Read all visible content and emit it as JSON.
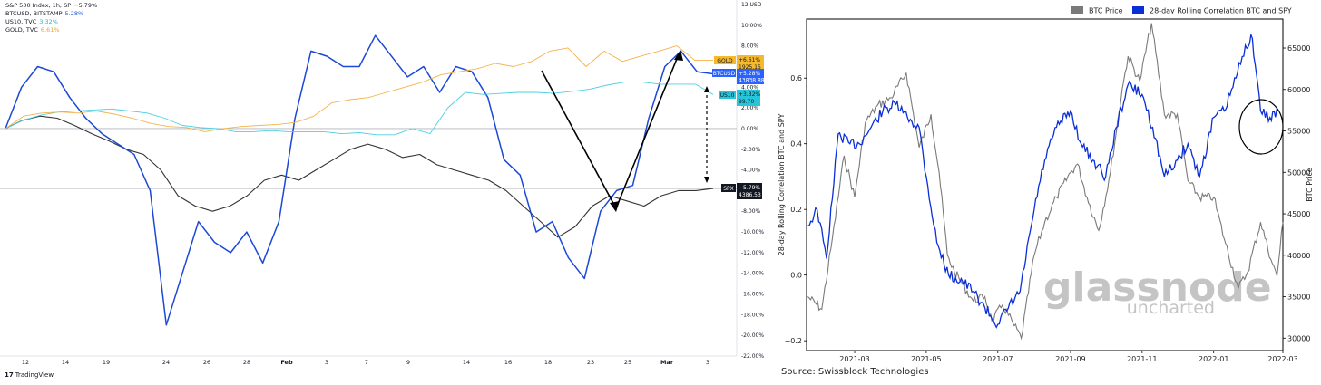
{
  "left": {
    "legend": [
      {
        "name": "S&P 500 Index, 1h, SP",
        "value": "−5.79%",
        "color": "#131722"
      },
      {
        "name": "BTCUSD, BITSTAMP",
        "value": "5.28%",
        "color": "#1e53e5"
      },
      {
        "name": "US10, TVC",
        "value": "3.32%",
        "color": "#22b5c9"
      },
      {
        "name": "GOLD, TVC",
        "value": "6.61%",
        "color": "#f0a420"
      }
    ],
    "tradingview": "TradingView",
    "badges": {
      "gold": {
        "ticker": "GOLD",
        "pct": "+6.61%",
        "price": "1925.15",
        "color": "#f5b92e"
      },
      "btc": {
        "ticker": "BTCUSD",
        "pct": "+5.28%",
        "price": "43838.88",
        "color": "#2962ff"
      },
      "us10": {
        "ticker": "US10",
        "pct": "+3.32%",
        "price": "99.70",
        "color": "#26c6da"
      },
      "spx": {
        "ticker": "SPX",
        "pct": "−5.79%",
        "price": "4386.53",
        "color": "#131722"
      }
    }
  },
  "chart_data": [
    {
      "type": "line",
      "y_unit": "%",
      "ylim": [
        -22,
        12
      ],
      "y_ticks": [
        "12 USD",
        "10.00%",
        "8.00%",
        "6.00%",
        "4.00%",
        "2.00%",
        "0.00%",
        "-2.00%",
        "-4.00%",
        "-6.00%",
        "-8.00%",
        "-10.00%",
        "-12.00%",
        "-14.00%",
        "-16.00%",
        "-18.00%",
        "-20.00%",
        "-22.00%"
      ],
      "x_ticks": [
        "12",
        "14",
        "19",
        "24",
        "26",
        "28",
        "Feb",
        "3",
        "7",
        "9",
        "14",
        "16",
        "18",
        "23",
        "25",
        "Mar",
        "3"
      ],
      "grid": false,
      "series": [
        {
          "name": "S&P 500 Index, 1h, SP",
          "color": "#333333",
          "values": [
            0,
            0.8,
            1.2,
            1.0,
            0.3,
            -0.5,
            -1.2,
            -2.0,
            -2.5,
            -4.0,
            -6.5,
            -7.5,
            -8.0,
            -7.5,
            -6.5,
            -5.0,
            -4.5,
            -5.0,
            -4.0,
            -3.0,
            -2.0,
            -1.5,
            -2.0,
            -2.8,
            -2.5,
            -3.5,
            -4.0,
            -4.5,
            -5.0,
            -6.0,
            -7.5,
            -9.0,
            -10.5,
            -9.5,
            -7.5,
            -6.5,
            -7.0,
            -7.5,
            -6.5,
            -6.0,
            -6.0,
            -5.8
          ]
        },
        {
          "name": "BTCUSD, BITSTAMP",
          "color": "#1c48d6",
          "values": [
            0,
            4.0,
            6.0,
            5.5,
            3.0,
            1.0,
            -0.5,
            -1.5,
            -2.5,
            -6.0,
            -19.0,
            -14.0,
            -9.0,
            -11.0,
            -12.0,
            -10.0,
            -13.0,
            -9.0,
            1.0,
            7.5,
            7.0,
            6.0,
            6.0,
            9.0,
            7.0,
            5.0,
            6.0,
            3.5,
            6.0,
            5.5,
            3.0,
            -3.0,
            -4.5,
            -10.0,
            -9.0,
            -12.5,
            -14.5,
            -8.0,
            -6.0,
            -5.5,
            1.0,
            6.0,
            7.5,
            5.5,
            5.3
          ]
        },
        {
          "name": "US10, TVC",
          "color": "#4dd0e1",
          "values": [
            0,
            0.8,
            1.3,
            1.6,
            1.7,
            1.8,
            1.9,
            1.7,
            1.5,
            1.0,
            0.3,
            0.1,
            0.0,
            -0.3,
            -0.3,
            -0.2,
            -0.3,
            -0.3,
            -0.3,
            -0.5,
            -0.4,
            -0.6,
            -0.6,
            0.0,
            -0.5,
            2.0,
            3.5,
            3.3,
            3.4,
            3.5,
            3.5,
            3.4,
            3.6,
            3.8,
            4.2,
            4.5,
            4.5,
            4.3,
            4.3,
            4.3,
            3.3
          ]
        },
        {
          "name": "GOLD, TVC",
          "color": "#f5b34f",
          "values": [
            0,
            1.2,
            1.5,
            1.6,
            1.5,
            1.7,
            1.4,
            1.0,
            0.5,
            0.2,
            0.1,
            -0.3,
            0.0,
            0.2,
            0.3,
            0.4,
            0.6,
            1.2,
            2.5,
            2.8,
            3.0,
            3.5,
            4.0,
            4.5,
            5.2,
            5.5,
            5.8,
            6.3,
            6.0,
            6.5,
            7.5,
            7.8,
            6.0,
            7.5,
            6.5,
            7.0,
            7.5,
            8.0,
            6.6,
            6.6
          ]
        }
      ]
    },
    {
      "type": "line",
      "legend": [
        "BTC Price",
        "28-day Rolling Correlation BTC and SPY"
      ],
      "ylabel": "28-day Rolling Correlation BTC and SPY",
      "y2label": "BTC Price",
      "ylim": [
        -0.23,
        0.78
      ],
      "y2lim": [
        28500,
        68500
      ],
      "y_ticks": [
        "−0.2",
        "0.0",
        "0.2",
        "0.4",
        "0.6"
      ],
      "y2_ticks": [
        "30000",
        "35000",
        "40000",
        "45000",
        "50000",
        "55000",
        "60000",
        "65000"
      ],
      "x_ticks": [
        "2021-03",
        "2021-05",
        "2021-07",
        "2021-09",
        "2021-11",
        "2022-01",
        "2022-03"
      ],
      "source": "Source: Swissblock Technologies",
      "watermark": [
        "glassnode",
        "uncharted"
      ],
      "series": [
        {
          "name": "BTC Price",
          "color": "#7a7a7a",
          "x": [
            "2021-01-20",
            "2021-02-01",
            "2021-02-10",
            "2021-02-20",
            "2021-03-01",
            "2021-03-10",
            "2021-03-20",
            "2021-04-01",
            "2021-04-14",
            "2021-04-25",
            "2021-05-05",
            "2021-05-12",
            "2021-05-19",
            "2021-05-25",
            "2021-06-01",
            "2021-06-10",
            "2021-06-20",
            "2021-06-26",
            "2021-07-05",
            "2021-07-15",
            "2021-07-21",
            "2021-08-01",
            "2021-08-10",
            "2021-08-20",
            "2021-09-01",
            "2021-09-07",
            "2021-09-15",
            "2021-09-25",
            "2021-10-05",
            "2021-10-15",
            "2021-10-20",
            "2021-10-30",
            "2021-11-09",
            "2021-11-20",
            "2021-12-01",
            "2021-12-10",
            "2021-12-20",
            "2022-01-01",
            "2022-01-10",
            "2022-01-22",
            "2022-01-30",
            "2022-02-10",
            "2022-02-20",
            "2022-02-24",
            "2022-03-01"
          ],
          "values": [
            35000,
            33500,
            42000,
            52000,
            47000,
            56000,
            58000,
            59000,
            62000,
            53000,
            57000,
            50000,
            40000,
            38000,
            36500,
            34500,
            35000,
            32000,
            34000,
            31500,
            30000,
            40000,
            44000,
            47000,
            50000,
            51000,
            47000,
            43000,
            50000,
            60000,
            64000,
            61000,
            68000,
            57000,
            57000,
            49000,
            47000,
            47000,
            42000,
            36000,
            38000,
            44000,
            39000,
            37500,
            44000
          ]
        },
        {
          "name": "28-day Rolling Correlation BTC and SPY",
          "color": "#0a2ed8",
          "x": [
            "2021-01-20",
            "2021-01-28",
            "2021-02-05",
            "2021-02-15",
            "2021-02-25",
            "2021-03-05",
            "2021-03-15",
            "2021-03-25",
            "2021-04-05",
            "2021-04-15",
            "2021-04-25",
            "2021-05-01",
            "2021-05-10",
            "2021-05-20",
            "2021-06-01",
            "2021-06-10",
            "2021-06-20",
            "2021-07-01",
            "2021-07-10",
            "2021-07-20",
            "2021-08-01",
            "2021-08-10",
            "2021-08-20",
            "2021-09-01",
            "2021-09-10",
            "2021-09-20",
            "2021-10-01",
            "2021-10-10",
            "2021-10-20",
            "2021-11-01",
            "2021-11-10",
            "2021-11-20",
            "2021-12-01",
            "2021-12-10",
            "2021-12-20",
            "2022-01-01",
            "2022-01-10",
            "2022-01-20",
            "2022-01-28",
            "2022-02-03",
            "2022-02-10",
            "2022-02-18",
            "2022-02-25"
          ],
          "values": [
            0.15,
            0.2,
            0.05,
            0.43,
            0.4,
            0.4,
            0.45,
            0.5,
            0.52,
            0.48,
            0.45,
            0.3,
            0.1,
            0.0,
            -0.02,
            -0.05,
            -0.1,
            -0.15,
            -0.1,
            -0.05,
            0.2,
            0.35,
            0.45,
            0.5,
            0.4,
            0.35,
            0.3,
            0.45,
            0.58,
            0.55,
            0.45,
            0.3,
            0.35,
            0.4,
            0.3,
            0.48,
            0.5,
            0.6,
            0.7,
            0.72,
            0.5,
            0.48,
            0.5
          ]
        }
      ]
    }
  ]
}
